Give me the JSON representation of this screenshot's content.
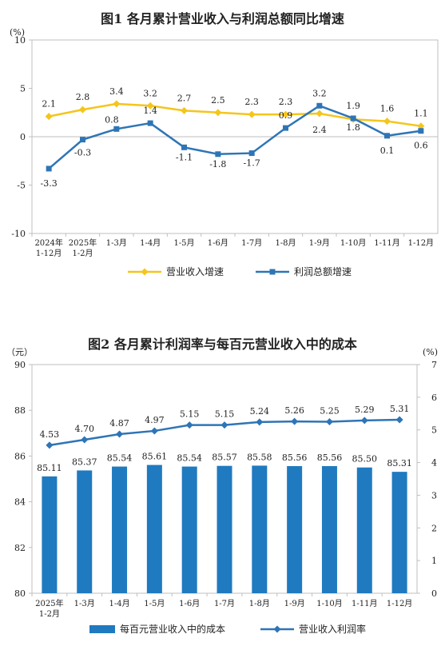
{
  "fig1": {
    "title": "图1  各月累计营业收入与利润总额同比增速",
    "chart_data": {
      "type": "line",
      "unit_label": "(%)",
      "categories": [
        [
          "2024年",
          "1-12月"
        ],
        [
          "2025年",
          "1-2月"
        ],
        [
          "1-3月"
        ],
        [
          "1-4月"
        ],
        [
          "1-5月"
        ],
        [
          "1-6月"
        ],
        [
          "1-7月"
        ],
        [
          "1-8月"
        ],
        [
          "1-9月"
        ],
        [
          "1-10月"
        ],
        [
          "1-11月"
        ],
        [
          "1-12月"
        ]
      ],
      "ylim": [
        -10,
        10
      ],
      "yticks": [
        -10,
        -5,
        0,
        5,
        10
      ],
      "grid": false,
      "legend_position": "bottom",
      "series": [
        {
          "name": "营业收入增速",
          "color": "#F5C51C",
          "marker": "diamond",
          "values": [
            2.1,
            2.8,
            3.4,
            3.2,
            2.7,
            2.5,
            2.3,
            2.3,
            2.4,
            1.8,
            1.6,
            1.1
          ],
          "labels": [
            "2.1",
            "2.8",
            "3.4",
            "3.2",
            "2.7",
            "2.5",
            "2.3",
            "2.3",
            "2.4",
            "1.8",
            "1.6",
            "1.1"
          ]
        },
        {
          "name": "利润总额增速",
          "color": "#2E75B6",
          "marker": "square",
          "values": [
            -3.3,
            -0.3,
            0.8,
            1.4,
            -1.1,
            -1.8,
            -1.7,
            0.9,
            3.2,
            1.9,
            0.1,
            0.6
          ],
          "labels": [
            "-3.3",
            "-0.3",
            "0.8",
            "1.4",
            "-1.1",
            "-1.8",
            "-1.7",
            "0.9",
            "3.2",
            "1.9",
            "0.1",
            "0.6"
          ]
        }
      ]
    }
  },
  "fig2": {
    "title": "图2  各月累计利润率与每百元营业收入中的成本",
    "chart_data": {
      "type": "bar",
      "left_unit_label": "（元）",
      "right_unit_label": "(%)",
      "categories": [
        [
          "2025年",
          "1-2月"
        ],
        [
          "1-3月"
        ],
        [
          "1-4月"
        ],
        [
          "1-5月"
        ],
        [
          "1-6月"
        ],
        [
          "1-7月"
        ],
        [
          "1-8月"
        ],
        [
          "1-9月"
        ],
        [
          "1-10月"
        ],
        [
          "1-11月"
        ],
        [
          "1-12月"
        ]
      ],
      "ylim_left": [
        80,
        90
      ],
      "yticks_left": [
        80,
        82,
        84,
        86,
        88,
        90
      ],
      "ylim_right": [
        0,
        7
      ],
      "yticks_right": [
        0,
        1,
        2,
        3,
        4,
        5,
        6,
        7
      ],
      "grid": false,
      "legend_position": "bottom",
      "series": [
        {
          "name": "每百元营业收入中的成本",
          "kind": "bar",
          "axis": "left",
          "color": "#1F7AC0",
          "values": [
            85.11,
            85.37,
            85.54,
            85.61,
            85.54,
            85.57,
            85.58,
            85.56,
            85.56,
            85.5,
            85.31
          ],
          "labels": [
            "85.11",
            "85.37",
            "85.54",
            "85.61",
            "85.54",
            "85.57",
            "85.58",
            "85.56",
            "85.56",
            "85.50",
            "85.31"
          ]
        },
        {
          "name": "营业收入利润率",
          "kind": "line",
          "axis": "right",
          "color": "#2E75B6",
          "marker": "diamond",
          "values": [
            4.53,
            4.7,
            4.87,
            4.97,
            5.15,
            5.15,
            5.24,
            5.26,
            5.25,
            5.29,
            5.31
          ],
          "labels": [
            "4.53",
            "4.70",
            "4.87",
            "4.97",
            "5.15",
            "5.15",
            "5.24",
            "5.26",
            "5.25",
            "5.29",
            "5.31"
          ]
        }
      ]
    }
  }
}
